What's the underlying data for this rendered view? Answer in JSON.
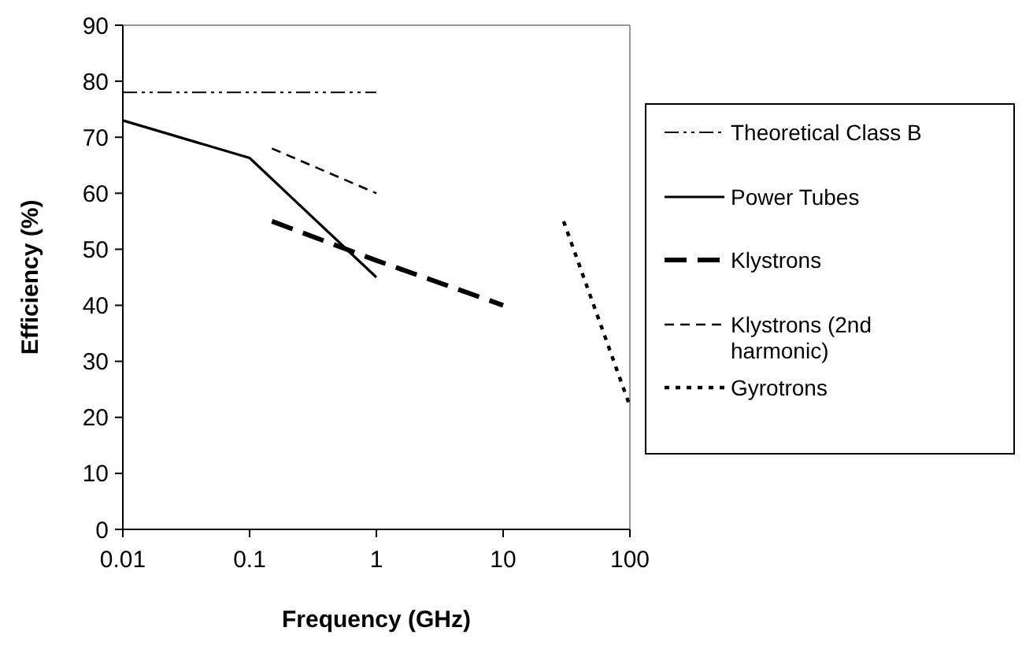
{
  "chart_data": {
    "type": "line",
    "xlabel": "Frequency (GHz)",
    "ylabel": "Efficiency (%)",
    "log": "x",
    "xlim": [
      0.01,
      100
    ],
    "ylim": [
      0,
      90
    ],
    "xticks": [
      0.01,
      0.1,
      1,
      10,
      100
    ],
    "yticks": [
      0,
      10,
      20,
      30,
      40,
      50,
      60,
      70,
      80,
      90
    ],
    "grid": false,
    "legend": "right",
    "series": [
      {
        "name": "Theoretical Class B",
        "color": "#000000",
        "line_style": "dashed",
        "x": [
          0.01,
          1
        ],
        "values": [
          78,
          78
        ]
      },
      {
        "name": "Power Tubes",
        "color": "#000000",
        "line_style": "solid",
        "x": [
          0.01,
          0.1,
          1
        ],
        "values": [
          73,
          66.3,
          45
        ]
      },
      {
        "name": "Klystrons",
        "color": "#000000",
        "line_style": "dashed",
        "x": [
          0.15,
          1,
          10
        ],
        "values": [
          55,
          48,
          40
        ]
      },
      {
        "name": "Klystrons (2nd harmonic)",
        "color": "#000000",
        "line_style": "dashed",
        "x": [
          0.15,
          1
        ],
        "values": [
          68,
          60
        ]
      },
      {
        "name": "Gyrotrons",
        "color": "#000000",
        "line_style": "dotted",
        "x": [
          30,
          100
        ],
        "values": [
          55,
          22
        ]
      }
    ]
  }
}
